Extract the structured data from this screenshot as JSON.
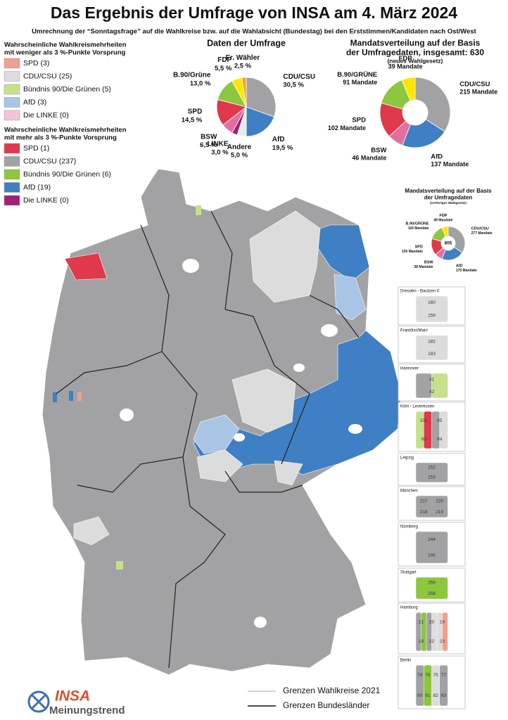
{
  "title": "Das Ergebnis der Umfrage von INSA am 4. März 2024",
  "subtitle": "Umrechnung der “Sonntagsfrage” auf die Wahlkreise bzw. auf die Wahlabsicht (Bundestag) bei den Erststimmen/Kandidaten nach Ost/West",
  "legend_weak": {
    "heading": [
      "Wahrscheinliche Wahlkreismehrheiten",
      "mit weniger als 3 %-Punkte Vorsprung"
    ],
    "items": [
      {
        "label": "SPD (3)",
        "color": "#f0a08e"
      },
      {
        "label": "CDU/CSU (25)",
        "color": "#dcdcdc"
      },
      {
        "label": "Bündnis 90/Die Grünen (5)",
        "color": "#c6e08c"
      },
      {
        "label": "AfD (3)",
        "color": "#a9c5e6"
      },
      {
        "label": "Die LINKE (0)",
        "color": "#f3c3dc"
      }
    ]
  },
  "legend_strong": {
    "heading": [
      "Wahrscheinliche Wahlkreismehrheiten",
      "mit mehr als 3 %-Punkte Vorsprung"
    ],
    "items": [
      {
        "label": "SPD (1)",
        "color": "#e0394b"
      },
      {
        "label": "CDU/CSU (237)",
        "color": "#a2a2a4"
      },
      {
        "label": "Bündnis 90/Die Grünen (6)",
        "color": "#8dc63f"
      },
      {
        "label": "AfD (19)",
        "color": "#3f7fc4"
      },
      {
        "label": "Die LINKE (0)",
        "color": "#a0207a"
      }
    ]
  },
  "chart_data": [
    {
      "type": "pie",
      "title": [
        "Daten der Umfrage"
      ],
      "categories": [
        "CDU/CSU",
        "AfD",
        "Andere",
        "LINKE",
        "BSW",
        "SPD",
        "B.90/Grüne",
        "FDP",
        "Fr. Wähler"
      ],
      "values": [
        30.5,
        19.5,
        5.0,
        3.0,
        6.5,
        14.5,
        13.0,
        5.5,
        2.5
      ],
      "value_labels": [
        "30,5 %",
        "19,5 %",
        "5,0 %",
        "3,0 %",
        "6,5 %",
        "14,5 %",
        "13,0 %",
        "5,5 %",
        "2,5 %"
      ],
      "colors": [
        "#a2a2a4",
        "#3f7fc4",
        "#e2eee0",
        "#a0207a",
        "#e36fa1",
        "#e0394b",
        "#8dc63f",
        "#ffe600",
        "#f5a623"
      ]
    },
    {
      "type": "donut",
      "title": [
        "Mandatsverteilung auf der Basis",
        "der Umfragedaten, insgesamt: 630"
      ],
      "subtitle": "(neues Wahlgesetz)",
      "categories": [
        "CDU/CSU",
        "AfD",
        "BSW",
        "SPD",
        "B.90/GRÜNE",
        "FDP"
      ],
      "values": [
        215,
        137,
        46,
        102,
        91,
        39
      ],
      "value_labels": [
        "215 Mandate",
        "137 Mandate",
        "46 Mandate",
        "102 Mandate",
        "91 Mandate",
        "39 Mandate"
      ],
      "colors": [
        "#a2a2a4",
        "#3f7fc4",
        "#e36fa1",
        "#e0394b",
        "#8dc63f",
        "#ffe600"
      ]
    },
    {
      "type": "donut",
      "title": [
        "Mandatsverteilung auf der Basis",
        "der Umfragedaten"
      ],
      "subtitle": "(vorheriges Wahlgesetz)",
      "total": "805",
      "categories": [
        "CDU/CSU",
        "AfD",
        "BSW",
        "SPD",
        "B.90/GRÜNE",
        "FDP"
      ],
      "values": [
        277,
        175,
        58,
        130,
        116,
        49
      ],
      "value_labels": [
        "277 Mandate",
        "175 Mandate",
        "58 Mandate",
        "130 Mandate",
        "116 Mandate",
        "49 Mandate"
      ],
      "colors": [
        "#a2a2a4",
        "#3f7fc4",
        "#e36fa1",
        "#e0394b",
        "#8dc63f",
        "#ffe600"
      ]
    }
  ],
  "insets": [
    {
      "title": "Dresden - Bautzen II",
      "labels": [
        "160",
        "159"
      ]
    },
    {
      "title": "Frankfurt/Main",
      "labels": [
        "182",
        "183"
      ]
    },
    {
      "title": "Hannover",
      "labels": [
        "41",
        "42"
      ]
    },
    {
      "title": "Köln - Leverkusen",
      "labels": [
        "101",
        "95",
        "93",
        "94"
      ]
    },
    {
      "title": "Leipzig",
      "labels": [
        "152",
        "153"
      ]
    },
    {
      "title": "München",
      "labels": [
        "217",
        "220",
        "218",
        "219"
      ]
    },
    {
      "title": "Nürnberg",
      "labels": [
        "244",
        "245"
      ]
    },
    {
      "title": "Stuttgart",
      "labels": [
        "259",
        "258"
      ]
    },
    {
      "title": "Hamburg",
      "labels": [
        "21",
        "20",
        "19",
        "18",
        "22",
        "23"
      ]
    },
    {
      "title": "Berlin",
      "labels": [
        "78",
        "76",
        "75",
        "77",
        "80",
        "81",
        "82",
        "83"
      ]
    }
  ],
  "map_legend": [
    "Grenzen Wahlkreise 2021",
    "Grenzen Bundesländer"
  ],
  "logo": [
    "INSA",
    "Meinungstrend"
  ]
}
